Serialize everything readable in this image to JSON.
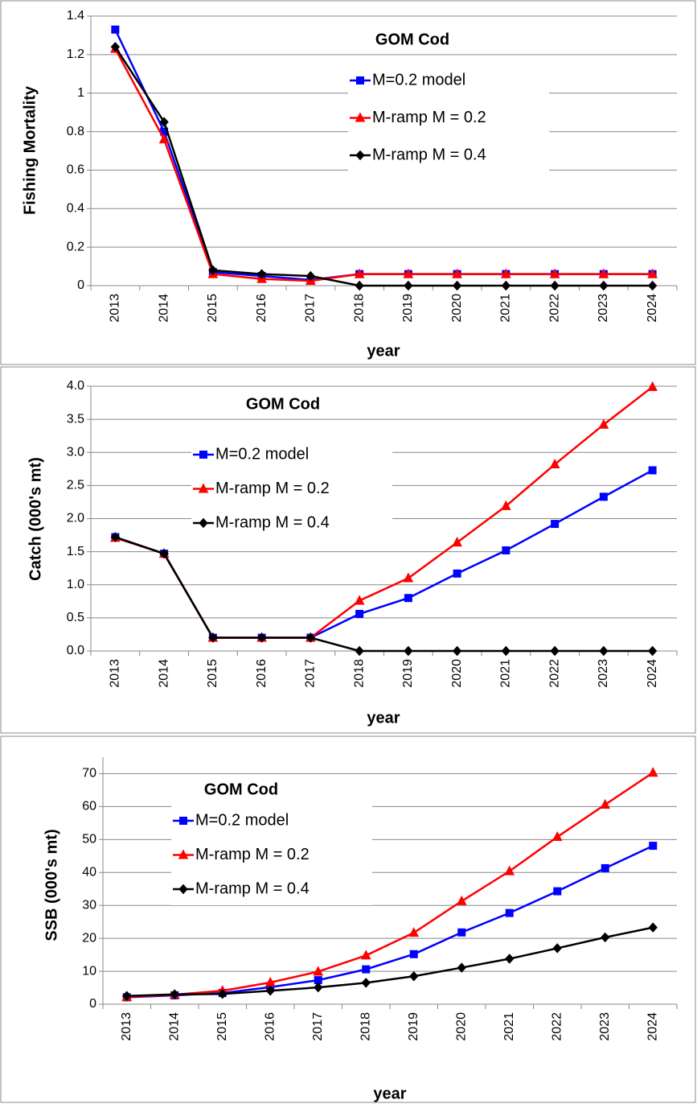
{
  "chart_data": [
    {
      "type": "line",
      "title": "GOM Cod",
      "x_label": "year",
      "y_label": "Fishing Mortality",
      "categories": [
        "2013",
        "2014",
        "2015",
        "2016",
        "2017",
        "2018",
        "2019",
        "2020",
        "2021",
        "2022",
        "2023",
        "2024"
      ],
      "series": [
        {
          "name": "M=0.2 model",
          "color": "#0000ff",
          "marker": "square",
          "values": [
            1.33,
            0.8,
            0.07,
            0.05,
            0.03,
            0.06,
            0.06,
            0.06,
            0.06,
            0.06,
            0.06,
            0.06
          ]
        },
        {
          "name": "M-ramp M = 0.2",
          "color": "#ff0000",
          "marker": "triangle",
          "values": [
            1.23,
            0.76,
            0.06,
            0.035,
            0.025,
            0.06,
            0.06,
            0.06,
            0.06,
            0.06,
            0.06,
            0.06
          ]
        },
        {
          "name": "M-ramp M = 0.4",
          "color": "#000000",
          "marker": "diamond",
          "values": [
            1.24,
            0.85,
            0.08,
            0.06,
            0.05,
            0,
            0,
            0,
            0,
            0,
            0,
            0
          ]
        }
      ],
      "ylim": [
        0,
        1.4
      ],
      "yticks": [
        0,
        0.2,
        0.4,
        0.6,
        0.8,
        1,
        1.2,
        1.4
      ],
      "grid": true
    },
    {
      "type": "line",
      "title": "GOM Cod",
      "x_label": "year",
      "y_label": "Catch (000's mt)",
      "categories": [
        "2013",
        "2014",
        "2015",
        "2016",
        "2017",
        "2018",
        "2019",
        "2020",
        "2021",
        "2022",
        "2023",
        "2024"
      ],
      "series": [
        {
          "name": "M=0.2 model",
          "color": "#0000ff",
          "marker": "square",
          "values": [
            1.72,
            1.47,
            0.2,
            0.2,
            0.2,
            0.56,
            0.8,
            1.17,
            1.52,
            1.92,
            2.33,
            2.73
          ]
        },
        {
          "name": "M-ramp M = 0.2",
          "color": "#ff0000",
          "marker": "triangle",
          "values": [
            1.71,
            1.47,
            0.2,
            0.2,
            0.2,
            0.76,
            1.1,
            1.64,
            2.19,
            2.82,
            3.42,
            3.99
          ]
        },
        {
          "name": "M-ramp M = 0.4",
          "color": "#000000",
          "marker": "diamond",
          "values": [
            1.72,
            1.47,
            0.2,
            0.2,
            0.2,
            0,
            0,
            0,
            0,
            0,
            0,
            0
          ]
        }
      ],
      "ylim": [
        0,
        4
      ],
      "yticks": [
        {
          "value": 0,
          "label": "0.0"
        },
        0.5,
        {
          "value": 1,
          "label": "1.0"
        },
        1.5,
        {
          "value": 2,
          "label": "2.0"
        },
        2.5,
        {
          "value": 3,
          "label": "3.0"
        },
        3.5,
        {
          "value": 4,
          "label": "4.0"
        }
      ],
      "grid": true
    },
    {
      "type": "line",
      "title": "GOM Cod",
      "x_label": "year",
      "y_label": "SSB (000's mt)",
      "categories": [
        "2013",
        "2014",
        "2015",
        "2016",
        "2017",
        "2018",
        "2019",
        "2020",
        "2021",
        "2022",
        "2023",
        "2024"
      ],
      "series": [
        {
          "name": "M=0.2 model",
          "color": "#0000ff",
          "marker": "square",
          "values": [
            2.1,
            2.7,
            3.4,
            5.2,
            7.3,
            10.6,
            15.2,
            21.8,
            27.7,
            34.3,
            41.3,
            48.1
          ]
        },
        {
          "name": "M-ramp M = 0.2",
          "color": "#ff0000",
          "marker": "triangle",
          "values": [
            2.2,
            2.9,
            4.1,
            6.6,
            9.9,
            14.8,
            21.7,
            31.3,
            40.4,
            50.8,
            60.6,
            70.3
          ]
        },
        {
          "name": "M-ramp M = 0.4",
          "color": "#000000",
          "marker": "diamond",
          "values": [
            2.5,
            3.0,
            3.1,
            4.1,
            5.1,
            6.5,
            8.5,
            11.1,
            13.8,
            17.0,
            20.3,
            23.3
          ]
        }
      ],
      "ylim": [
        0,
        75
      ],
      "yticks": [
        0,
        10,
        20,
        30,
        40,
        50,
        60,
        70
      ],
      "grid": true
    }
  ]
}
